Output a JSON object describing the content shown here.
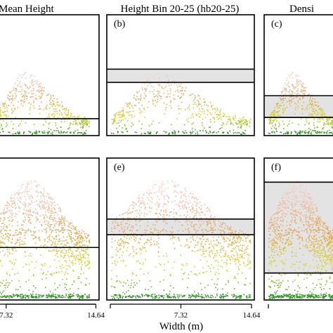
{
  "figure": {
    "column_titles": [
      "Mean Height",
      "Height Bin 20-25 (hb20-25)",
      "Densi"
    ],
    "xlabel": "Width (m)"
  },
  "chart_data": {
    "type": "scatter",
    "xlabel": "Width (m)",
    "xlim": [
      0,
      14.64
    ],
    "x_ticks": [
      "7.32",
      "14.64"
    ],
    "x_tick_values": [
      7.32,
      14.64
    ],
    "ylim": [
      0,
      1
    ],
    "grid": false,
    "colormap": [
      "#2ca02c",
      "#d9d92a",
      "#e1a85a",
      "#f0c4b4",
      "#fbeeee"
    ],
    "panels": [
      {
        "label": "",
        "row": 0,
        "col": 0,
        "line_y": 0.14
      },
      {
        "label": "(b)",
        "row": 0,
        "col": 1,
        "band": [
          0.44,
          0.55
        ]
      },
      {
        "label": "(c)",
        "row": 0,
        "col": 2,
        "band": [
          0.15,
          0.33
        ],
        "line_y": 0.15
      },
      {
        "label": "",
        "row": 1,
        "col": 0,
        "line_y": 0.37
      },
      {
        "label": "(e)",
        "row": 1,
        "col": 1,
        "band": [
          0.46,
          0.57
        ]
      },
      {
        "label": "(f)",
        "row": 1,
        "col": 2,
        "band": [
          0.19,
          0.83
        ],
        "line_y": 0.19
      }
    ]
  }
}
